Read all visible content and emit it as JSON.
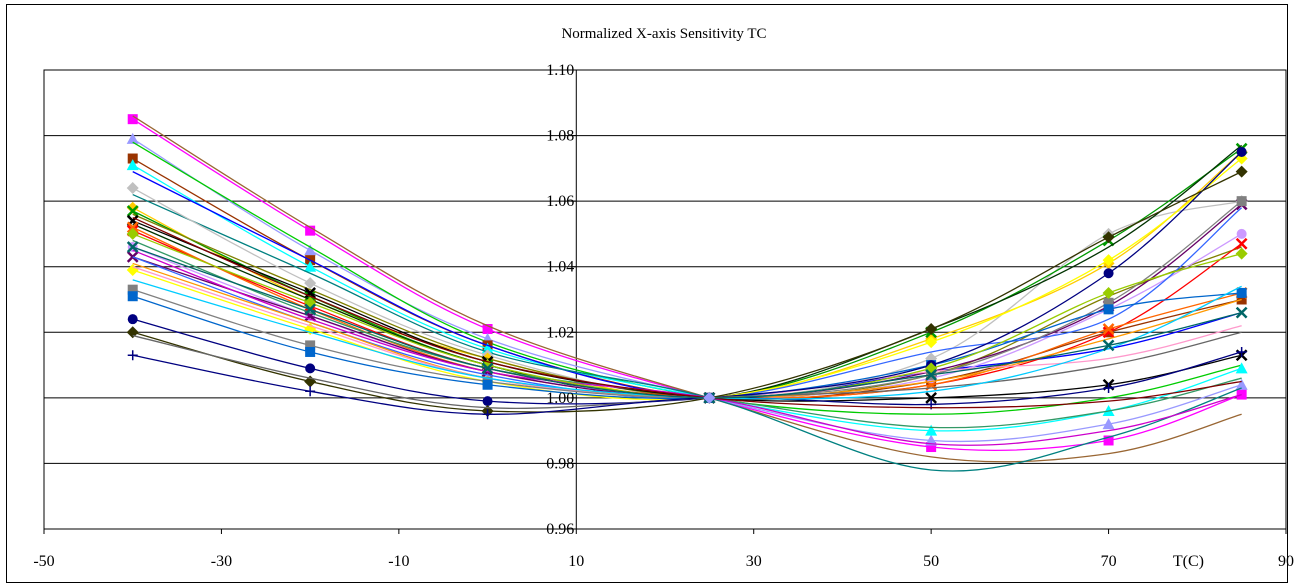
{
  "chart_data": {
    "type": "line",
    "title": "Normalized X-axis Sensitivity TC",
    "xlabel": "T(C)",
    "ylabel": "",
    "xlim": [
      -50,
      90
    ],
    "ylim": [
      0.96,
      1.1
    ],
    "x_ticks": [
      "-50",
      "-30",
      "-10",
      "10",
      "30",
      "50",
      "70",
      "90"
    ],
    "y_ticks": [
      "0.96",
      "0.98",
      "1.00",
      "1.02",
      "1.04",
      "1.06",
      "1.08",
      "1.10"
    ],
    "grid": "horizontal",
    "legend": "none",
    "x": [
      -40,
      -20,
      0,
      25,
      50,
      70,
      85
    ],
    "series": [
      {
        "color": "#FF00FF",
        "marker": "square",
        "values": [
          1.085,
          1.051,
          1.021,
          1.0,
          0.985,
          0.987,
          1.001
        ]
      },
      {
        "color": "#996633",
        "marker": "none",
        "values": [
          1.086,
          1.052,
          1.022,
          1.0,
          0.982,
          0.983,
          0.995
        ]
      },
      {
        "color": "#9999FF",
        "marker": "triangle",
        "values": [
          1.079,
          1.045,
          1.018,
          1.0,
          0.987,
          0.992,
          1.004
        ]
      },
      {
        "color": "#00CC00",
        "marker": "none",
        "values": [
          1.078,
          1.046,
          1.017,
          1.0,
          0.995,
          1.0,
          1.01
        ]
      },
      {
        "color": "#993300",
        "marker": "square",
        "values": [
          1.073,
          1.042,
          1.016,
          1.0,
          1.005,
          1.02,
          1.03
        ]
      },
      {
        "color": "#00FFFF",
        "marker": "triangle",
        "values": [
          1.071,
          1.04,
          1.015,
          1.0,
          0.99,
          0.996,
          1.009
        ]
      },
      {
        "color": "#0000FF",
        "marker": "none",
        "values": [
          1.069,
          1.042,
          1.016,
          1.0,
          1.008,
          1.015,
          1.026
        ]
      },
      {
        "color": "#008080",
        "marker": "none",
        "values": [
          1.062,
          1.038,
          1.014,
          1.0,
          0.978,
          0.988,
          1.003
        ]
      },
      {
        "color": "#C0C0C0",
        "marker": "diamond",
        "values": [
          1.064,
          1.035,
          1.013,
          1.0,
          1.012,
          1.05,
          1.06
        ]
      },
      {
        "color": "#FFCC00",
        "marker": "diamond",
        "values": [
          1.058,
          1.03,
          1.012,
          1.0,
          1.018,
          1.041,
          1.075
        ]
      },
      {
        "color": "#009900",
        "marker": "x",
        "values": [
          1.057,
          1.031,
          1.01,
          1.0,
          1.02,
          1.048,
          1.076
        ]
      },
      {
        "color": "#808000",
        "marker": "none",
        "values": [
          1.056,
          1.033,
          1.012,
          1.0,
          1.007,
          1.031,
          1.046
        ]
      },
      {
        "color": "#000000",
        "marker": "x",
        "values": [
          1.054,
          1.032,
          1.011,
          1.0,
          1.0,
          1.004,
          1.013
        ]
      },
      {
        "color": "#003300",
        "marker": "none",
        "values": [
          1.053,
          1.03,
          1.01,
          1.0,
          1.021,
          1.046,
          1.077
        ]
      },
      {
        "color": "#FF0000",
        "marker": "x",
        "values": [
          1.051,
          1.028,
          1.009,
          1.0,
          1.004,
          1.02,
          1.047
        ]
      },
      {
        "color": "#FF6600",
        "marker": "x",
        "values": [
          1.052,
          1.027,
          1.008,
          1.0,
          1.004,
          1.021,
          1.032
        ]
      },
      {
        "color": "#CC99FF",
        "marker": "circle",
        "values": [
          1.046,
          1.025,
          1.008,
          1.0,
          1.006,
          1.027,
          1.05
        ]
      },
      {
        "color": "#660066",
        "marker": "x",
        "values": [
          1.043,
          1.025,
          1.008,
          1.0,
          1.008,
          1.028,
          1.059
        ]
      },
      {
        "color": "#3366FF",
        "marker": "none",
        "values": [
          1.043,
          1.023,
          1.007,
          1.0,
          1.014,
          1.024,
          1.058
        ]
      },
      {
        "color": "#FF9900",
        "marker": "none",
        "values": [
          1.041,
          1.023,
          1.006,
          1.0,
          1.005,
          1.018,
          1.03
        ]
      },
      {
        "color": "#FFFF00",
        "marker": "diamond",
        "values": [
          1.039,
          1.021,
          1.005,
          1.0,
          1.017,
          1.042,
          1.073
        ]
      },
      {
        "color": "#FF99CC",
        "marker": "none",
        "values": [
          1.04,
          1.022,
          1.006,
          1.0,
          1.008,
          1.012,
          1.022
        ]
      },
      {
        "color": "#808080",
        "marker": "square",
        "values": [
          1.033,
          1.016,
          1.005,
          1.0,
          1.007,
          1.029,
          1.06
        ]
      },
      {
        "color": "#0066CC",
        "marker": "square",
        "values": [
          1.031,
          1.014,
          1.004,
          1.0,
          1.01,
          1.027,
          1.032
        ]
      },
      {
        "color": "#000080",
        "marker": "circle",
        "values": [
          1.024,
          1.009,
          0.999,
          1.0,
          1.01,
          1.038,
          1.075
        ]
      },
      {
        "color": "#333300",
        "marker": "diamond",
        "values": [
          1.02,
          1.005,
          0.996,
          1.0,
          1.021,
          1.049,
          1.069
        ]
      },
      {
        "color": "#666666",
        "marker": "none",
        "values": [
          1.019,
          1.006,
          0.997,
          1.0,
          1.003,
          1.01,
          1.02
        ]
      },
      {
        "color": "#000080",
        "marker": "plus",
        "values": [
          1.013,
          1.002,
          0.995,
          1.0,
          0.998,
          1.003,
          1.014
        ]
      },
      {
        "color": "#339966",
        "marker": "none",
        "values": [
          1.048,
          1.026,
          1.009,
          1.0,
          0.991,
          0.996,
          1.006
        ]
      },
      {
        "color": "#CC00CC",
        "marker": "none",
        "values": [
          1.045,
          1.024,
          1.008,
          1.0,
          0.986,
          0.99,
          1.001
        ]
      },
      {
        "color": "#99CC00",
        "marker": "diamond",
        "values": [
          1.05,
          1.029,
          1.01,
          1.0,
          1.009,
          1.032,
          1.044
        ]
      },
      {
        "color": "#00CCFF",
        "marker": "none",
        "values": [
          1.036,
          1.02,
          1.006,
          1.0,
          1.002,
          1.015,
          1.034
        ]
      },
      {
        "color": "#800000",
        "marker": "none",
        "values": [
          1.055,
          1.031,
          1.011,
          1.0,
          0.997,
          0.999,
          1.005
        ]
      },
      {
        "color": "#006666",
        "marker": "x",
        "values": [
          1.046,
          1.027,
          1.009,
          1.0,
          1.007,
          1.016,
          1.026
        ]
      }
    ]
  }
}
